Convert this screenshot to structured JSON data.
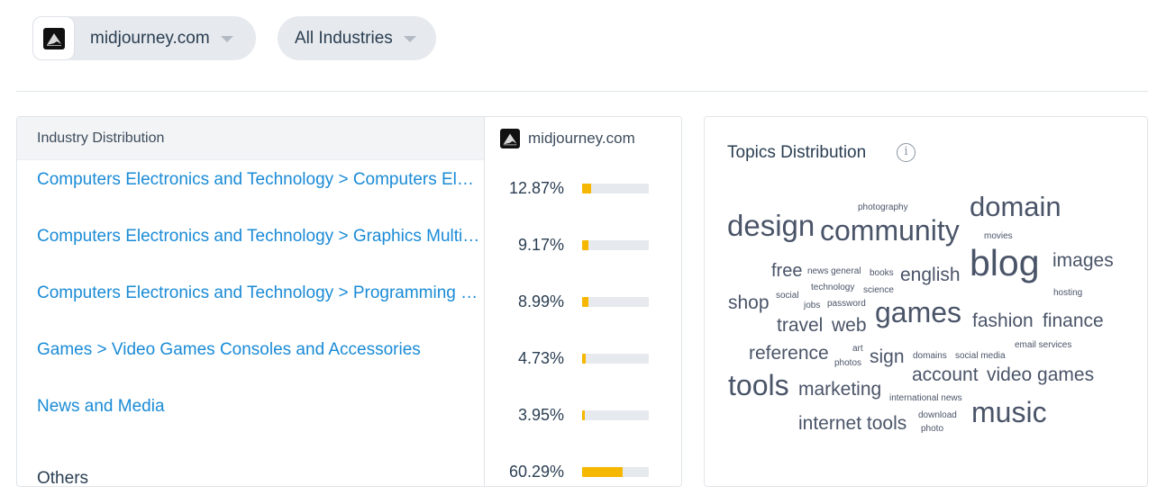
{
  "filters": {
    "domain": {
      "label": "midjourney.com",
      "icon": "midjourney-logo"
    },
    "industry": {
      "label": "All Industries"
    }
  },
  "industry_table": {
    "header": {
      "label": "Industry Distribution",
      "site": "midjourney.com"
    },
    "rows": [
      {
        "name": "Computers Electronics and Technology > Computers Electronics and Technology",
        "pct": "12.87%",
        "value": 12.87,
        "link": true
      },
      {
        "name": "Computers Electronics and Technology > Graphics Multimedia and Web Design",
        "pct": "9.17%",
        "value": 9.17,
        "link": true
      },
      {
        "name": "Computers Electronics and Technology > Programming and Developer Software",
        "pct": "8.99%",
        "value": 8.99,
        "link": true
      },
      {
        "name": "Games > Video Games Consoles and Accessories",
        "pct": "4.73%",
        "value": 4.73,
        "link": true
      },
      {
        "name": "News and Media",
        "pct": "3.95%",
        "value": 3.95,
        "link": true
      },
      {
        "name": "Others",
        "pct": "60.29%",
        "value": 60.29,
        "link": false
      }
    ],
    "bar_color": "#f5b700"
  },
  "topics": {
    "title": "Topics Distribution",
    "words": [
      "photography",
      "domain",
      "design",
      "community",
      "movies",
      "blog",
      "images",
      "free",
      "news general",
      "books",
      "english",
      "technology",
      "science",
      "hosting",
      "shop",
      "social",
      "jobs",
      "password",
      "games",
      "fashion",
      "finance",
      "travel",
      "web",
      "reference",
      "art",
      "photos",
      "sign",
      "domains",
      "social media",
      "email services",
      "tools",
      "account",
      "video games",
      "marketing",
      "international news",
      "internet tools",
      "download",
      "photo",
      "music"
    ]
  }
}
